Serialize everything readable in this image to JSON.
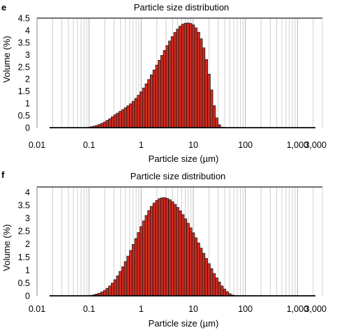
{
  "chart_data": [
    {
      "panel": "e",
      "type": "bar",
      "title": "Particle size distribution",
      "xlabel": "Particle size (µm)",
      "ylabel": "Volume (%)",
      "x_scale": "log",
      "xlim": [
        0.01,
        3000
      ],
      "ylim": [
        0,
        4.5
      ],
      "grid": true,
      "x_ticks": [
        "0.01",
        "0.1",
        "1",
        "10",
        "100",
        "1,000",
        "3,000"
      ],
      "y_ticks": [
        "0",
        "0.5",
        "1",
        "1.5",
        "2",
        "2.5",
        "3",
        "3.5",
        "4",
        "4.5"
      ],
      "color": "#d42a1e",
      "x": [
        0.1,
        0.112,
        0.126,
        0.141,
        0.158,
        0.178,
        0.2,
        0.224,
        0.251,
        0.282,
        0.316,
        0.355,
        0.398,
        0.447,
        0.501,
        0.562,
        0.631,
        0.708,
        0.794,
        0.891,
        1,
        1.12,
        1.26,
        1.41,
        1.58,
        1.78,
        2,
        2.24,
        2.51,
        2.82,
        3.16,
        3.55,
        3.98,
        4.47,
        5.01,
        5.62,
        6.31,
        7.08,
        7.94,
        8.91,
        10,
        11.2,
        12.6,
        14.1,
        15.8,
        17.8,
        20,
        22.4,
        25.1,
        28.2,
        31.6,
        35.5
      ],
      "values": [
        0.02,
        0.04,
        0.06,
        0.09,
        0.13,
        0.18,
        0.23,
        0.3,
        0.37,
        0.45,
        0.53,
        0.6,
        0.67,
        0.74,
        0.82,
        0.9,
        0.98,
        1.08,
        1.2,
        1.33,
        1.47,
        1.63,
        1.8,
        1.98,
        2.17,
        2.37,
        2.57,
        2.77,
        2.97,
        3.17,
        3.37,
        3.56,
        3.74,
        3.91,
        4.05,
        4.17,
        4.25,
        4.29,
        4.3,
        4.28,
        4.22,
        4.1,
        3.92,
        3.65,
        3.28,
        2.8,
        2.2,
        1.55,
        0.9,
        0.4,
        0.12,
        0.02
      ]
    },
    {
      "panel": "f",
      "type": "bar",
      "title": "Particle size distribution",
      "xlabel": "Particle size (µm)",
      "ylabel": "Volume (%)",
      "x_scale": "log",
      "xlim": [
        0.01,
        3000
      ],
      "ylim": [
        0,
        4.2
      ],
      "grid": true,
      "x_ticks": [
        "0.01",
        "0.1",
        "1",
        "10",
        "100",
        "1,000",
        "3,000"
      ],
      "y_ticks": [
        "0",
        "0.5",
        "1",
        "1.5",
        "2",
        "2.5",
        "3",
        "3.5",
        "4"
      ],
      "color": "#d42a1e",
      "x": [
        0.1,
        0.112,
        0.126,
        0.141,
        0.158,
        0.178,
        0.2,
        0.224,
        0.251,
        0.282,
        0.316,
        0.355,
        0.398,
        0.447,
        0.501,
        0.562,
        0.631,
        0.708,
        0.794,
        0.891,
        1,
        1.12,
        1.26,
        1.41,
        1.58,
        1.78,
        2,
        2.24,
        2.51,
        2.82,
        3.16,
        3.55,
        3.98,
        4.47,
        5.01,
        5.62,
        6.31,
        7.08,
        7.94,
        8.91,
        10,
        11.2,
        12.6,
        14.1,
        15.8,
        17.8,
        20,
        22.4,
        25.1,
        28.2,
        31.6,
        35.5,
        39.8,
        44.7,
        50.1,
        56.2,
        63.1
      ],
      "values": [
        0.01,
        0.02,
        0.04,
        0.07,
        0.1,
        0.15,
        0.21,
        0.29,
        0.38,
        0.49,
        0.62,
        0.77,
        0.94,
        1.12,
        1.32,
        1.53,
        1.75,
        1.98,
        2.21,
        2.44,
        2.67,
        2.89,
        3.1,
        3.29,
        3.45,
        3.58,
        3.68,
        3.75,
        3.78,
        3.79,
        3.76,
        3.71,
        3.63,
        3.53,
        3.41,
        3.28,
        3.13,
        2.97,
        2.8,
        2.62,
        2.43,
        2.24,
        2.04,
        1.84,
        1.64,
        1.44,
        1.24,
        1.05,
        0.86,
        0.69,
        0.53,
        0.38,
        0.26,
        0.16,
        0.08,
        0.03,
        0.01
      ]
    }
  ]
}
